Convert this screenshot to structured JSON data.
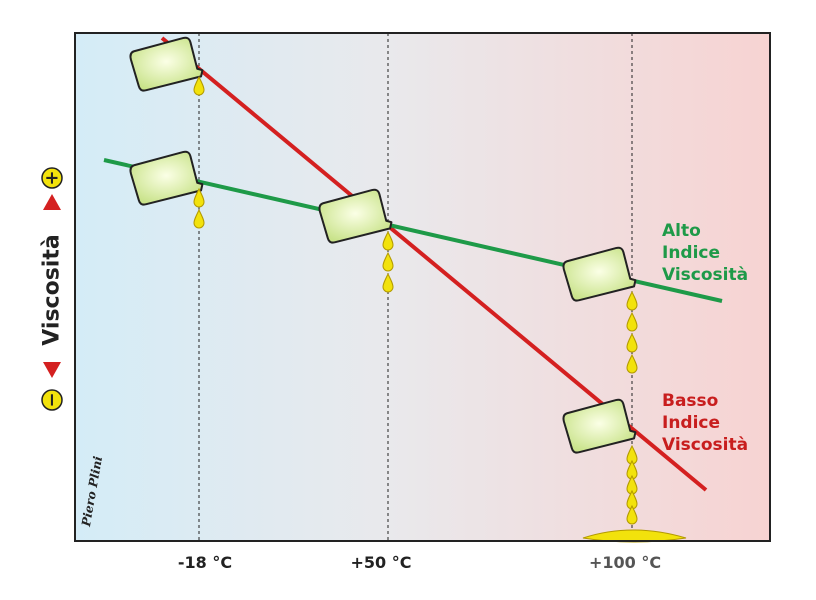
{
  "temperatures": [
    "-18 °C",
    "+50 °C",
    "+100 °C"
  ],
  "y_axis": {
    "label": "Viscosità",
    "minus": "−",
    "plus": "+"
  },
  "high_index": {
    "lines": [
      "Alto",
      "Indice",
      "Viscosità"
    ]
  },
  "low_index": {
    "lines": [
      "Basso",
      "Indice",
      "Viscosità"
    ]
  },
  "signature": "Piero Plini"
}
